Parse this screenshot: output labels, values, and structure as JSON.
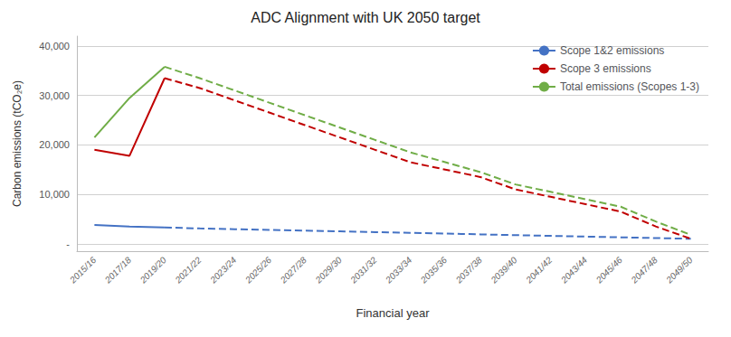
{
  "chart_data": {
    "type": "line",
    "title": "ADC Alignment with UK 2050 target",
    "xlabel": "Financial year",
    "ylabel": "Carbon emissions (tCO₂e)",
    "categories": [
      "2015/16",
      "2017/18",
      "2019/20",
      "2021/22",
      "2023/24",
      "2025/26",
      "2027/28",
      "2029/30",
      "2031/32",
      "2033/34",
      "2035/36",
      "2037/38",
      "2039/40",
      "2041/42",
      "2043/44",
      "2045/46",
      "2047/48",
      "2049/50"
    ],
    "series": [
      {
        "name": "Scope 1&2 emissions",
        "color": "#4472C4",
        "line_style": "solid",
        "values": [
          3800,
          3500,
          3300,
          null,
          null,
          null,
          null,
          null,
          null,
          null,
          null,
          null,
          null,
          null,
          null,
          null,
          null,
          null
        ]
      },
      {
        "color": "#4472C4",
        "line_style": "dashed",
        "values": [
          null,
          null,
          3300,
          3100,
          2950,
          2800,
          2650,
          2500,
          2350,
          2200,
          2050,
          1900,
          1750,
          1600,
          1450,
          1300,
          1150,
          1000
        ]
      },
      {
        "name": "Scope 3 emissions",
        "color": "#C00000",
        "line_style": "solid",
        "values": [
          19000,
          17800,
          33500,
          null,
          null,
          null,
          null,
          null,
          null,
          null,
          null,
          null,
          null,
          null,
          null,
          null,
          null,
          null
        ]
      },
      {
        "color": "#C00000",
        "line_style": "dashed",
        "values": [
          null,
          null,
          33500,
          31500,
          29000,
          26500,
          24000,
          21500,
          19000,
          16500,
          15000,
          13500,
          11000,
          9500,
          8000,
          6500,
          3500,
          1000
        ]
      },
      {
        "name": "Total emissions (Scopes 1-3)",
        "color": "#70AD47",
        "line_style": "solid",
        "values": [
          21500,
          29500,
          35800,
          null,
          null,
          null,
          null,
          null,
          null,
          null,
          null,
          null,
          null,
          null,
          null,
          null,
          null,
          null
        ]
      },
      {
        "color": "#70AD47",
        "line_style": "dashed",
        "values": [
          null,
          null,
          35800,
          33500,
          31000,
          28500,
          26000,
          23500,
          21000,
          18500,
          16500,
          14500,
          12000,
          10500,
          9000,
          7500,
          4500,
          1800
        ]
      }
    ],
    "ylim": [
      -1500,
      42000
    ],
    "yticks": [
      {
        "value": 0,
        "label": "-"
      },
      {
        "value": 10000,
        "label": "10,000"
      },
      {
        "value": 20000,
        "label": "20,000"
      },
      {
        "value": 30000,
        "label": "30,000"
      },
      {
        "value": 40000,
        "label": "40,000"
      }
    ],
    "grid": true,
    "legend": "upper right"
  }
}
